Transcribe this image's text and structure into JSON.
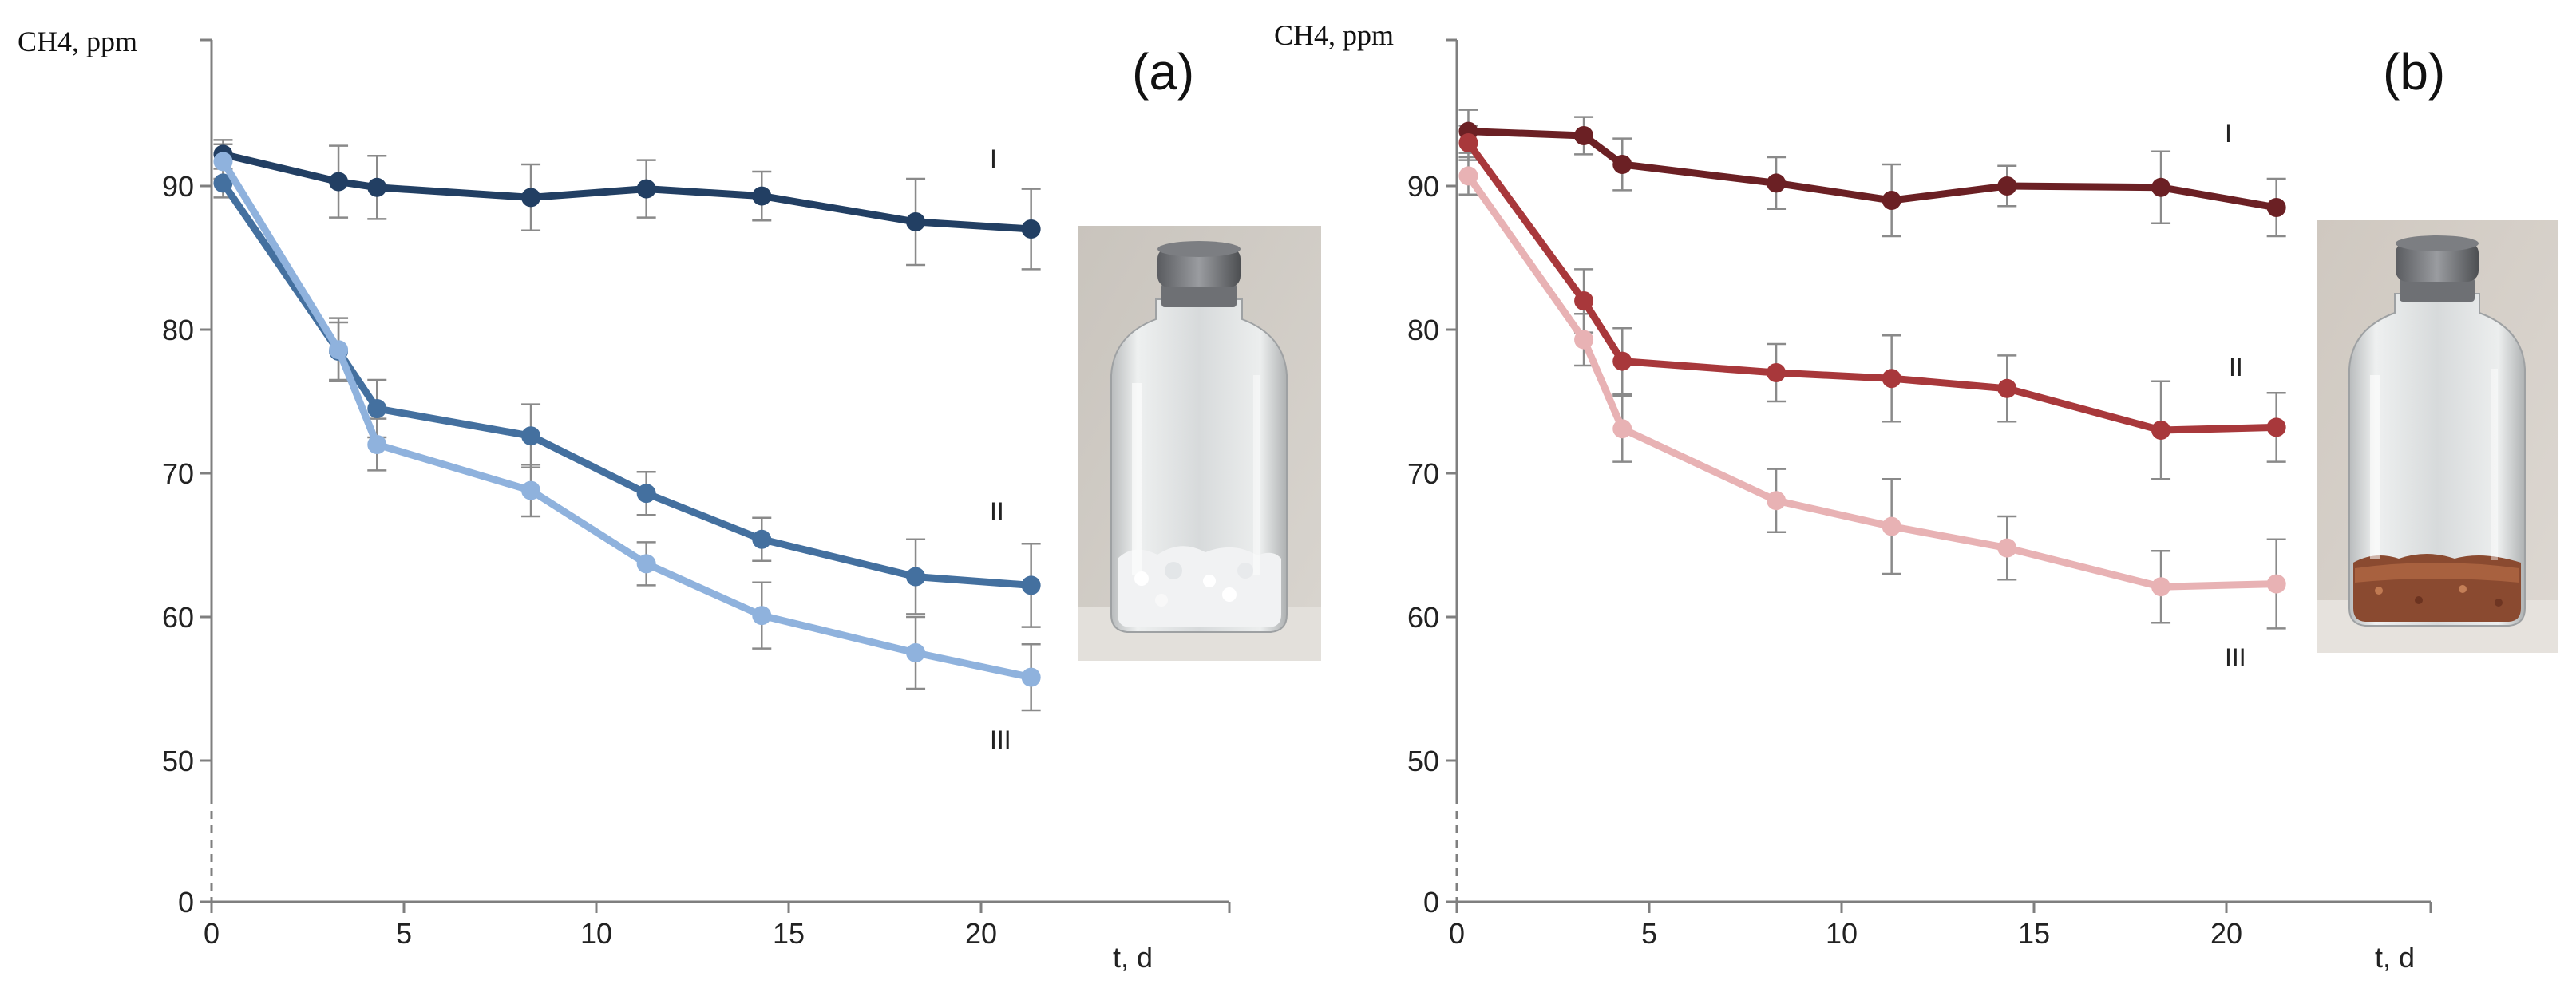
{
  "chart_data": [
    {
      "type": "line",
      "panel_label": "(a)",
      "xlabel": "t, d",
      "ylabel": "CH4, ppm",
      "xlim": [
        0,
        25
      ],
      "ylim": [
        0,
        100
      ],
      "xticks": [
        "0",
        "5",
        "10",
        "15",
        "20"
      ],
      "yticks": [
        "0",
        "50",
        "60",
        "70",
        "80",
        "90"
      ],
      "y_axis_break": true,
      "x": [
        0.3,
        3.3,
        4.3,
        8.3,
        11.3,
        14.3,
        18.3,
        21.3
      ],
      "series": [
        {
          "name": "I",
          "color": "#223f63",
          "values": [
            92.2,
            90.3,
            89.9,
            89.2,
            89.8,
            89.3,
            87.5,
            87.0
          ],
          "errors": [
            1.0,
            2.5,
            2.2,
            2.3,
            2.0,
            1.7,
            3.0,
            2.8
          ]
        },
        {
          "name": "II",
          "color": "#44709f",
          "values": [
            90.2,
            78.5,
            74.5,
            72.6,
            68.6,
            65.4,
            62.8,
            62.2
          ],
          "errors": [
            1.0,
            2.0,
            2.0,
            2.2,
            1.5,
            1.5,
            2.6,
            2.9
          ]
        },
        {
          "name": "III",
          "color": "#8fb2dd",
          "values": [
            91.7,
            78.6,
            72.0,
            68.8,
            63.7,
            60.1,
            57.5,
            55.8
          ],
          "errors": [
            1.2,
            2.2,
            1.8,
            1.8,
            1.5,
            2.3,
            2.5,
            2.3
          ]
        }
      ]
    },
    {
      "type": "line",
      "panel_label": "(b)",
      "xlabel": "t, d",
      "ylabel": "CH4, ppm",
      "xlim": [
        0,
        25
      ],
      "ylim": [
        0,
        100
      ],
      "xticks": [
        "0",
        "5",
        "10",
        "15",
        "20"
      ],
      "yticks": [
        "0",
        "50",
        "60",
        "70",
        "80",
        "90"
      ],
      "y_axis_break": true,
      "x": [
        0.3,
        3.3,
        4.3,
        8.3,
        11.3,
        14.3,
        18.3,
        21.3
      ],
      "series": [
        {
          "name": "I",
          "color": "#6b2024",
          "values": [
            93.8,
            93.5,
            91.5,
            90.2,
            89.0,
            90.0,
            89.9,
            88.5
          ],
          "errors": [
            1.5,
            1.3,
            1.8,
            1.8,
            2.5,
            1.4,
            2.5,
            2.0
          ]
        },
        {
          "name": "II",
          "color": "#a8383b",
          "values": [
            93.0,
            82.0,
            77.8,
            77.0,
            76.6,
            75.9,
            73.0,
            73.2
          ],
          "errors": [
            1.2,
            2.2,
            2.3,
            2.0,
            3.0,
            2.3,
            3.4,
            2.4
          ]
        },
        {
          "name": "III",
          "color": "#e8b2b4",
          "values": [
            90.7,
            79.3,
            73.1,
            68.1,
            66.3,
            64.8,
            62.1,
            62.3
          ],
          "errors": [
            1.3,
            1.8,
            2.3,
            2.2,
            3.3,
            2.2,
            2.5,
            3.1
          ]
        }
      ]
    }
  ],
  "photos": [
    {
      "icon": "glass-vial-white-crystals-icon"
    },
    {
      "icon": "glass-vial-brown-granules-icon"
    }
  ]
}
